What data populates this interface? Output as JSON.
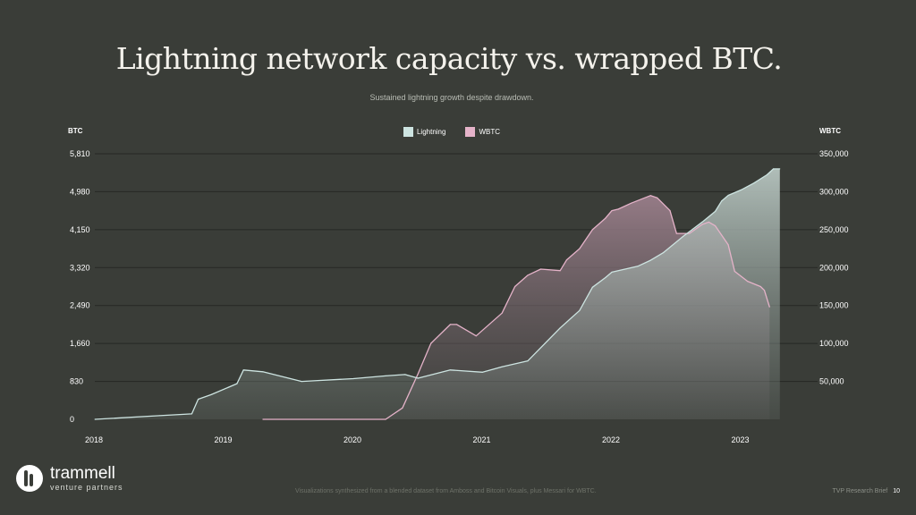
{
  "title": "Lightning network capacity vs. wrapped BTC.",
  "subtitle": "Sustained lightning growth despite drawdown.",
  "chart_data": {
    "type": "area",
    "title": "Lightning network capacity vs. wrapped BTC.",
    "subtitle": "Sustained lightning growth despite drawdown.",
    "left_axis_label": "BTC",
    "right_axis_label": "WBTC",
    "legend_position": "top-center",
    "grid": true,
    "x_ticks": [
      "2018",
      "2019",
      "2020",
      "2021",
      "2022",
      "2023"
    ],
    "x_range": [
      2018.0,
      2023.36
    ],
    "left_ticks": [
      "0",
      "830",
      "1,660",
      "2,490",
      "3,320",
      "4,150",
      "4,980",
      "5,810"
    ],
    "left_range": [
      0,
      5810
    ],
    "right_ticks": [
      "50,000",
      "100,000",
      "150,000",
      "200,000",
      "250,000",
      "300,000",
      "350,000"
    ],
    "right_range": [
      0,
      350000
    ],
    "series": [
      {
        "name": "Lightning",
        "axis": "left",
        "color": "#cde4e1",
        "x": [
          2018.0,
          2018.5,
          2018.75,
          2018.8,
          2018.9,
          2019.1,
          2019.15,
          2019.3,
          2019.6,
          2020.0,
          2020.25,
          2020.4,
          2020.5,
          2020.75,
          2021.0,
          2021.15,
          2021.35,
          2021.6,
          2021.75,
          2021.85,
          2021.95,
          2022.0,
          2022.2,
          2022.3,
          2022.4,
          2022.55,
          2022.7,
          2022.8,
          2022.85,
          2022.9,
          2023.0,
          2023.1,
          2023.2,
          2023.25,
          2023.3
        ],
        "y": [
          0,
          80,
          120,
          440,
          540,
          780,
          1080,
          1040,
          830,
          890,
          950,
          980,
          900,
          1080,
          1030,
          1150,
          1280,
          2000,
          2380,
          2890,
          3100,
          3220,
          3350,
          3480,
          3650,
          4000,
          4320,
          4550,
          4780,
          4900,
          5020,
          5170,
          5350,
          5480,
          5480
        ]
      },
      {
        "name": "WBTC",
        "axis": "right",
        "color": "#e5b3c9",
        "x": [
          2019.3,
          2020.25,
          2020.38,
          2020.5,
          2020.6,
          2020.75,
          2020.8,
          2020.95,
          2021.15,
          2021.25,
          2021.35,
          2021.45,
          2021.6,
          2021.65,
          2021.75,
          2021.85,
          2021.95,
          2022.0,
          2022.05,
          2022.15,
          2022.3,
          2022.35,
          2022.45,
          2022.5,
          2022.6,
          2022.7,
          2022.75,
          2022.8,
          2022.9,
          2022.95,
          2023.05,
          2023.15,
          2023.18,
          2023.22
        ],
        "y": [
          0,
          0,
          15000,
          60000,
          100000,
          125000,
          125000,
          110000,
          140000,
          175000,
          190000,
          198000,
          196000,
          210000,
          225000,
          250000,
          265000,
          275000,
          277000,
          285000,
          295000,
          292000,
          275000,
          245000,
          245000,
          257000,
          260000,
          255000,
          230000,
          195000,
          182000,
          175000,
          170000,
          148000
        ]
      }
    ]
  },
  "logo": {
    "name": "trammell",
    "sub": "venture partners"
  },
  "footnote": "Visualizations synthesized from a blended dataset from Amboss and Bitcoin Visuals, plus Messari for WBTC.",
  "footer": {
    "label": "TVP Research Brief",
    "page": "10"
  }
}
